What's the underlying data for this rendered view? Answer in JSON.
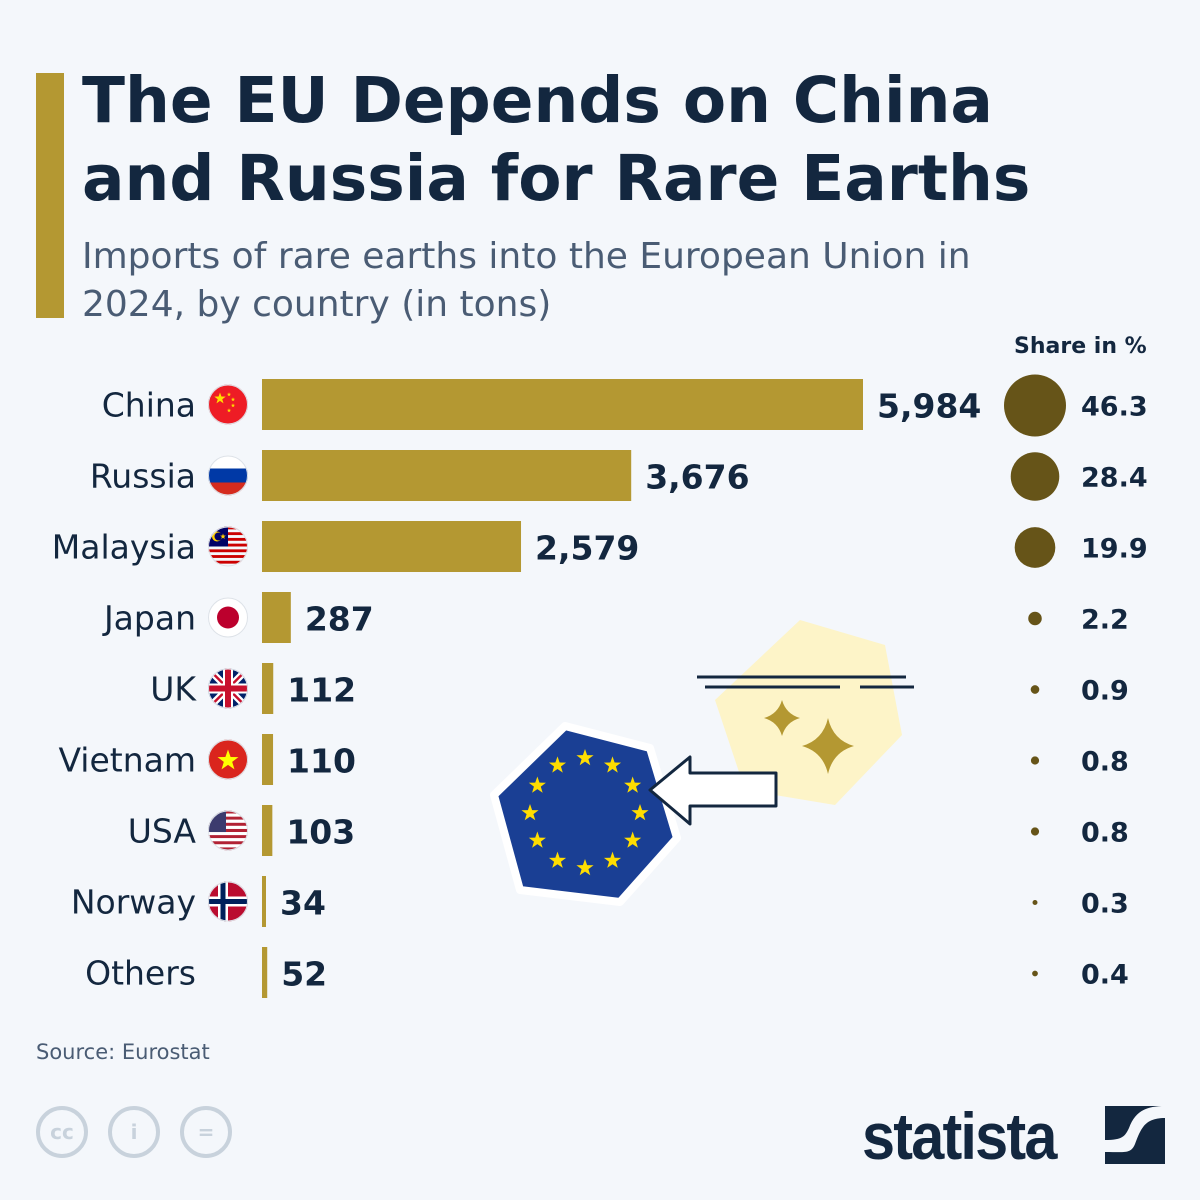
{
  "title": "The EU Depends on China and Russia for Rare Earths",
  "subtitle": "Imports of rare earths into the European Union in 2024, by country (in tons)",
  "share_header": "Share in %",
  "source": "Source: Eurostat",
  "brand": "statista",
  "colors": {
    "bar": "#b49832",
    "bubble": "#665418",
    "text": "#13273f",
    "accent": "#b49832",
    "eu_blue": "#1a3f94",
    "eu_star": "#ffdd00"
  },
  "chart_data": {
    "type": "bar",
    "orientation": "horizontal",
    "title": "The EU Depends on China and Russia for Rare Earths",
    "subtitle": "Imports of rare earths into the European Union in 2024, by country (in tons)",
    "categories": [
      "China",
      "Russia",
      "Malaysia",
      "Japan",
      "UK",
      "Vietnam",
      "USA",
      "Norway",
      "Others"
    ],
    "flags": [
      "china",
      "russia",
      "malaysia",
      "japan",
      "uk",
      "vietnam",
      "usa",
      "norway",
      ""
    ],
    "values": [
      5984,
      3676,
      2579,
      287,
      112,
      110,
      103,
      34,
      52
    ],
    "value_labels": [
      "5,984",
      "3,676",
      "2,579",
      "287",
      "112",
      "110",
      "103",
      "34",
      "52"
    ],
    "share_label": "Share in %",
    "share_values": [
      46.3,
      28.4,
      19.9,
      2.2,
      0.9,
      0.8,
      0.8,
      0.3,
      0.4
    ],
    "share_labels": [
      "46.3",
      "28.4",
      "19.9",
      "2.2",
      "0.9",
      "0.8",
      "0.8",
      "0.3",
      "0.4"
    ],
    "grid": false
  }
}
